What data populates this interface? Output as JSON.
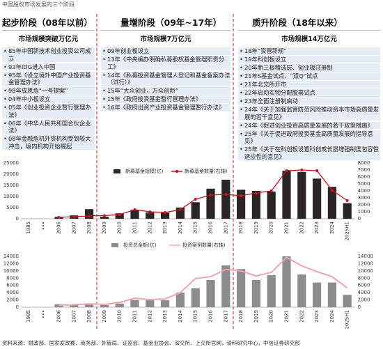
{
  "title": "中国股权市场发展的三个阶段",
  "stages": [
    {
      "title": "起步阶段（08年以前）",
      "scale": "市场规模突破万亿元",
      "events": [
        "85年中国新技术创业投资公司成立",
        "92年IDG进入中国",
        "95年《设立境外中国产业投资基金管理办法》",
        "98年成思危“一号提案”",
        "04年中小板设立",
        "05年《创业投资企业暂行管理办法》",
        "06年《中华人民共和国合伙企业法》",
        "08年金融危机外资机构受到较大冲击，境内机构开始崛起"
      ]
    },
    {
      "title": "量增阶段（09年~17年）",
      "scale": "市场规模7万亿元",
      "events": [
        "09年创业板设立",
        "13年《中央编办明确私募股权基金管理职责分工》",
        "14年《私募投资基金管理人登记和基金备案办法（试行）》",
        "15年“大众创业、万众创新”",
        "15年《政府投资基金暂行管理办法》",
        "16年《政府出资产业投资基金管理暂行办法》"
      ]
    },
    {
      "title": "质升阶段（18年以来）",
      "scale": "市场规模14万亿元",
      "events": [
        "18年“资管新规”",
        "19年科创板设立",
        "20年新三板精选层、创业板注册制",
        "21年S基金试点、“双Q”试点",
        "21年北交所开市",
        "22年启动实物分配股票试点",
        "23年全面注册制启动",
        "24年《关于加强监管防范风险推动资本市场高质量发展的若干意见》",
        "24年《促进创业投资高质量发展的若干政策措施》",
        "25年《关于促进政府投资基金高质量发展的指导意见》",
        "25年《关于在科创板设置科创成长层增强制度包容性适应性的意见》"
      ]
    }
  ],
  "chart_data": [
    {
      "type": "combo",
      "categories": [
        "1985",
        "•••",
        "2006",
        "2007",
        "2008",
        "2009",
        "2010",
        "2011",
        "2012",
        "2013",
        "2014",
        "2015",
        "2016",
        "2017",
        "2018",
        "2019",
        "2020",
        "2021",
        "2022",
        "2023",
        "2024",
        "2025H1"
      ],
      "series": [
        {
          "name": "新募基金规模(亿)",
          "mark": "bar",
          "color": "#2a2626",
          "values": [
            null,
            null,
            800,
            1500,
            4300,
            900,
            2400,
            4000,
            2800,
            2700,
            5000,
            7400,
            13500,
            17500,
            13000,
            12500,
            12200,
            21500,
            21000,
            18000,
            14300,
            7000
          ]
        },
        {
          "name": "新募基金数量(右轴)",
          "mark": "line",
          "axis": "y2",
          "color": "#d0101e",
          "values": [
            null,
            null,
            200,
            300,
            400,
            450,
            600,
            1300,
            1000,
            900,
            1300,
            2800,
            3400,
            3500,
            3300,
            3700,
            4000,
            6900,
            7000,
            6900,
            4100,
            2600
          ]
        }
      ],
      "ylim": [
        0,
        25000
      ],
      "yticks": [
        0,
        5000,
        10000,
        15000,
        20000,
        25000
      ],
      "y2lim": [
        0,
        8000
      ],
      "y2ticks": [
        0,
        1000,
        2000,
        3000,
        4000,
        5000,
        6000,
        7000,
        8000
      ]
    },
    {
      "type": "combo",
      "categories": [
        "1985",
        "•••",
        "2006",
        "2007",
        "2008",
        "2009",
        "2010",
        "2011",
        "2012",
        "2013",
        "2014",
        "2015",
        "2016",
        "2017",
        "2018",
        "2019",
        "2020",
        "2021",
        "2022",
        "2023",
        "2024",
        "2025H1"
      ],
      "series": [
        {
          "name": "投资总金额(亿)",
          "mark": "bar",
          "color": "#8c8c8c",
          "values": [
            null,
            null,
            800,
            600,
            700,
            600,
            1000,
            2000,
            1900,
            1900,
            4000,
            5200,
            7500,
            11500,
            10500,
            7500,
            8800,
            14000,
            9000,
            6800,
            6800,
            3400
          ]
        },
        {
          "name": "投资案例数量(右轴)",
          "mark": "line",
          "axis": "y2",
          "color": "#f2a3ab",
          "values": [
            null,
            null,
            500,
            700,
            900,
            800,
            1300,
            2500,
            2100,
            2300,
            4000,
            7900,
            8400,
            10400,
            10000,
            8600,
            9600,
            13700,
            11400,
            9800,
            8400,
            5300
          ]
        }
      ],
      "ylim": [
        0,
        14000
      ],
      "yticks": [
        0,
        2000,
        4000,
        6000,
        8000,
        10000,
        12000,
        14000
      ],
      "y2lim": [
        0,
        14000
      ],
      "y2ticks": [
        0,
        2000,
        4000,
        6000,
        8000,
        10000,
        12000,
        14000
      ]
    }
  ],
  "source": "资料来源：财政部、国家发改委、商务部、外管局、证监会、基金业协会、深交所、上交所官网，清科研究中心，中信证券研究部"
}
